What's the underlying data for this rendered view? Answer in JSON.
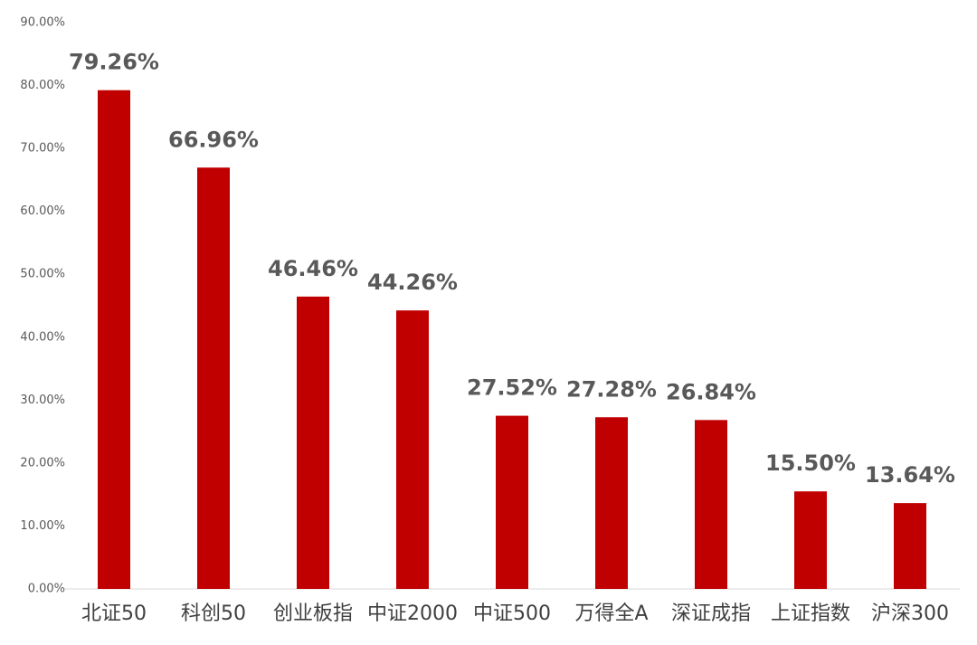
{
  "chart_data": {
    "type": "bar",
    "categories": [
      "北证50",
      "科创50",
      "创业板指",
      "中证2000",
      "中证500",
      "万得全A",
      "深证成指",
      "上证指数",
      "沪深300"
    ],
    "values": [
      79.26,
      66.96,
      46.46,
      44.26,
      27.52,
      27.28,
      26.84,
      15.5,
      13.64
    ],
    "value_labels": [
      "79.26%",
      "66.96%",
      "46.46%",
      "44.26%",
      "27.52%",
      "27.28%",
      "26.84%",
      "15.50%",
      "13.64%"
    ],
    "color": "#c00000",
    "ylim": [
      0,
      90
    ],
    "yticks": [
      {
        "value": 0,
        "label": "0.00%"
      },
      {
        "value": 10,
        "label": "10.00%"
      },
      {
        "value": 20,
        "label": "20.00%"
      },
      {
        "value": 30,
        "label": "30.00%"
      },
      {
        "value": 40,
        "label": "40.00%"
      },
      {
        "value": 50,
        "label": "50.00%"
      },
      {
        "value": 60,
        "label": "60.00%"
      },
      {
        "value": 70,
        "label": "70.00%"
      },
      {
        "value": 80,
        "label": "80.00%"
      },
      {
        "value": 90,
        "label": "90.00%"
      }
    ],
    "grid": false
  }
}
